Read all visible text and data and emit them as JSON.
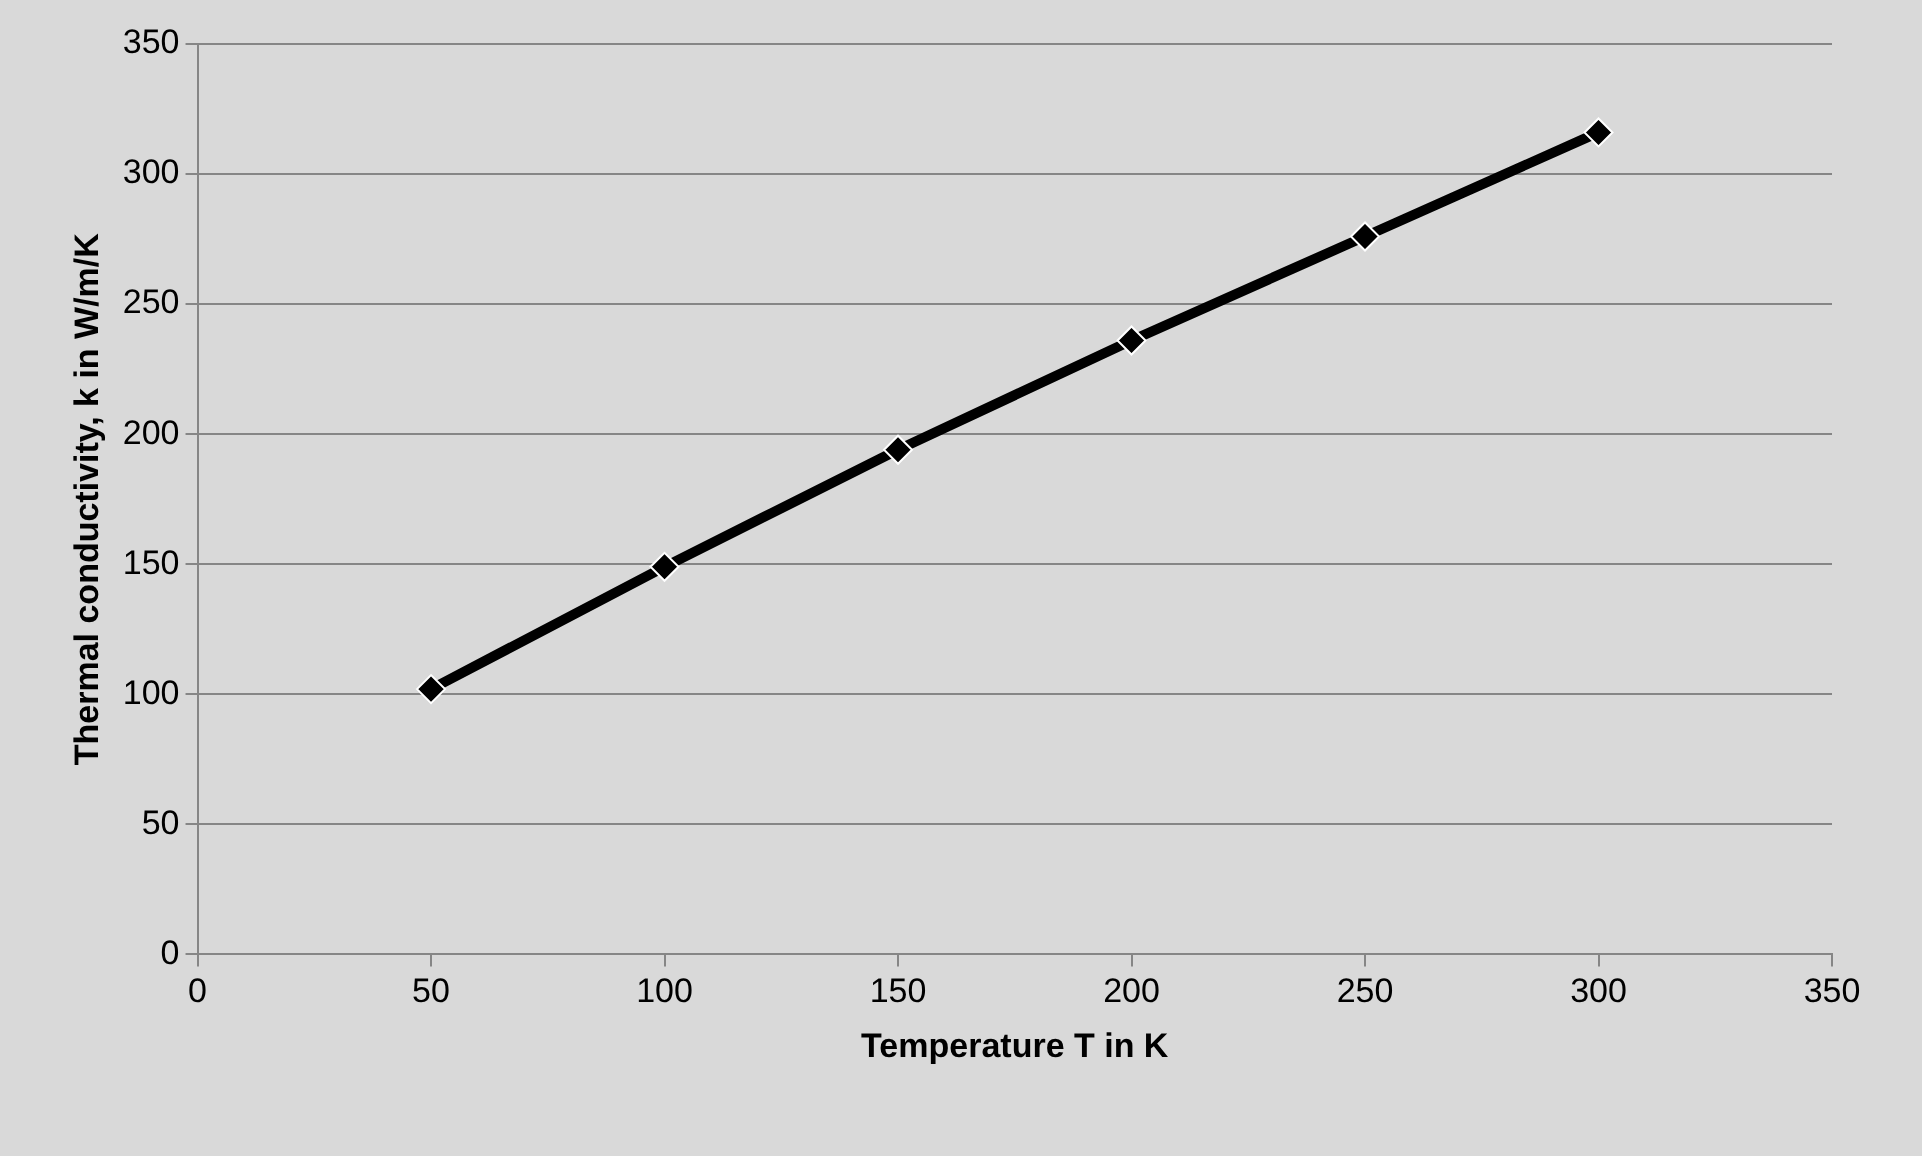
{
  "chart_data": {
    "type": "line",
    "xlabel": "Temperature T in K",
    "ylabel": "Thermal conductivity, k in W/m/K",
    "x": [
      50,
      100,
      150,
      200,
      250,
      300
    ],
    "series": [
      {
        "color": "#000000",
        "values": [
          102,
          149,
          194,
          236,
          276,
          316
        ]
      }
    ],
    "xlim": [
      0,
      350
    ],
    "xticks": [
      0,
      50,
      100,
      150,
      200,
      250,
      300,
      350
    ],
    "ylim": [
      0,
      350
    ],
    "yticks": [
      0,
      50,
      100,
      150,
      200,
      250,
      300,
      350
    ],
    "grid": "y",
    "legend": false,
    "marker": "diamond",
    "line_style": "solid"
  }
}
